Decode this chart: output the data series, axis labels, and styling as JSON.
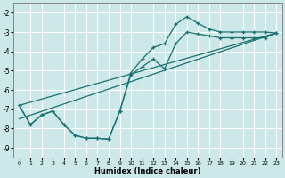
{
  "title": "",
  "xlabel": "Humidex (Indice chaleur)",
  "bg_color": "#cce8e8",
  "grid_color": "#ffffff",
  "line_color": "#1a7070",
  "xlim": [
    -0.5,
    23.5
  ],
  "ylim": [
    -9.5,
    -1.5
  ],
  "xticks": [
    0,
    1,
    2,
    3,
    4,
    5,
    6,
    7,
    8,
    9,
    10,
    11,
    12,
    13,
    14,
    15,
    16,
    17,
    18,
    19,
    20,
    21,
    22,
    23
  ],
  "yticks": [
    -9,
    -8,
    -7,
    -6,
    -5,
    -4,
    -3,
    -2
  ],
  "series1_x": [
    0,
    1,
    2,
    3,
    4,
    5,
    6,
    7,
    8,
    9,
    10,
    11,
    12,
    13,
    14,
    15,
    16,
    17,
    18,
    19,
    20,
    21,
    22,
    23
  ],
  "series1_y": [
    -6.8,
    -7.8,
    -7.3,
    -7.1,
    -7.8,
    -8.35,
    -8.5,
    -8.5,
    -8.55,
    -7.1,
    -5.1,
    -4.4,
    -3.8,
    -3.6,
    -2.6,
    -2.2,
    -2.55,
    -2.85,
    -3.0,
    -3.0,
    -3.0,
    -3.0,
    -3.0,
    -3.05
  ],
  "series2_x": [
    0,
    1,
    2,
    3,
    4,
    5,
    6,
    7,
    8,
    9,
    10,
    11,
    12,
    13,
    14,
    15,
    16,
    17,
    18,
    19,
    20,
    21,
    22,
    23
  ],
  "series2_y": [
    -6.8,
    -7.8,
    -7.3,
    -7.1,
    -7.8,
    -8.35,
    -8.5,
    -8.5,
    -8.55,
    -7.1,
    -5.2,
    -4.8,
    -4.4,
    -4.9,
    -3.6,
    -3.0,
    -3.1,
    -3.2,
    -3.3,
    -3.3,
    -3.3,
    -3.3,
    -3.3,
    -3.05
  ],
  "series3_x": [
    0,
    23
  ],
  "series3_y": [
    -6.8,
    -3.05
  ],
  "series4_x": [
    0,
    23
  ],
  "series4_y": [
    -7.5,
    -3.05
  ]
}
